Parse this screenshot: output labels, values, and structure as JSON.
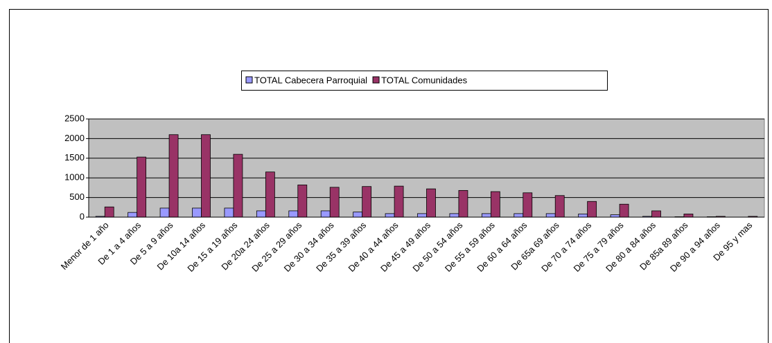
{
  "chart_data": {
    "type": "bar",
    "categories": [
      "Menor de 1 año",
      "De 1 a 4 años",
      "De 5 a 9 años",
      "De 10a 14 años",
      "De 15 a 19 años",
      "De 20a 24 años",
      "De 25 a 29 años",
      "De 30 a 34 años",
      "De 35 a 39 años",
      "De 40 a 44 años",
      "De 45 a 49 años",
      "De 50 a 54 años",
      "De 55 a 59 años",
      "De 60 a 64 años",
      "De 65a 69 años",
      "De 70 a 74 años",
      "De 75 a 79 años",
      "De 80 a 84 años",
      "De 85a 89 años",
      "De 90 a 94 años",
      "De 95 y mas"
    ],
    "series": [
      {
        "name": "TOTAL Cabecera Parroquial",
        "color": "#9999ff",
        "values": [
          20,
          120,
          230,
          230,
          230,
          160,
          160,
          160,
          130,
          90,
          90,
          90,
          90,
          90,
          90,
          80,
          60,
          20,
          10,
          10,
          0
        ]
      },
      {
        "name": "TOTAL Comunidades",
        "color": "#993366",
        "values": [
          260,
          1530,
          2100,
          2100,
          1600,
          1150,
          820,
          760,
          780,
          790,
          720,
          680,
          650,
          620,
          550,
          400,
          330,
          160,
          80,
          20,
          20
        ]
      }
    ],
    "ylim": [
      0,
      2500
    ],
    "yticks": [
      0,
      500,
      1000,
      1500,
      2000,
      2500
    ],
    "grid": true,
    "legend": "top"
  }
}
